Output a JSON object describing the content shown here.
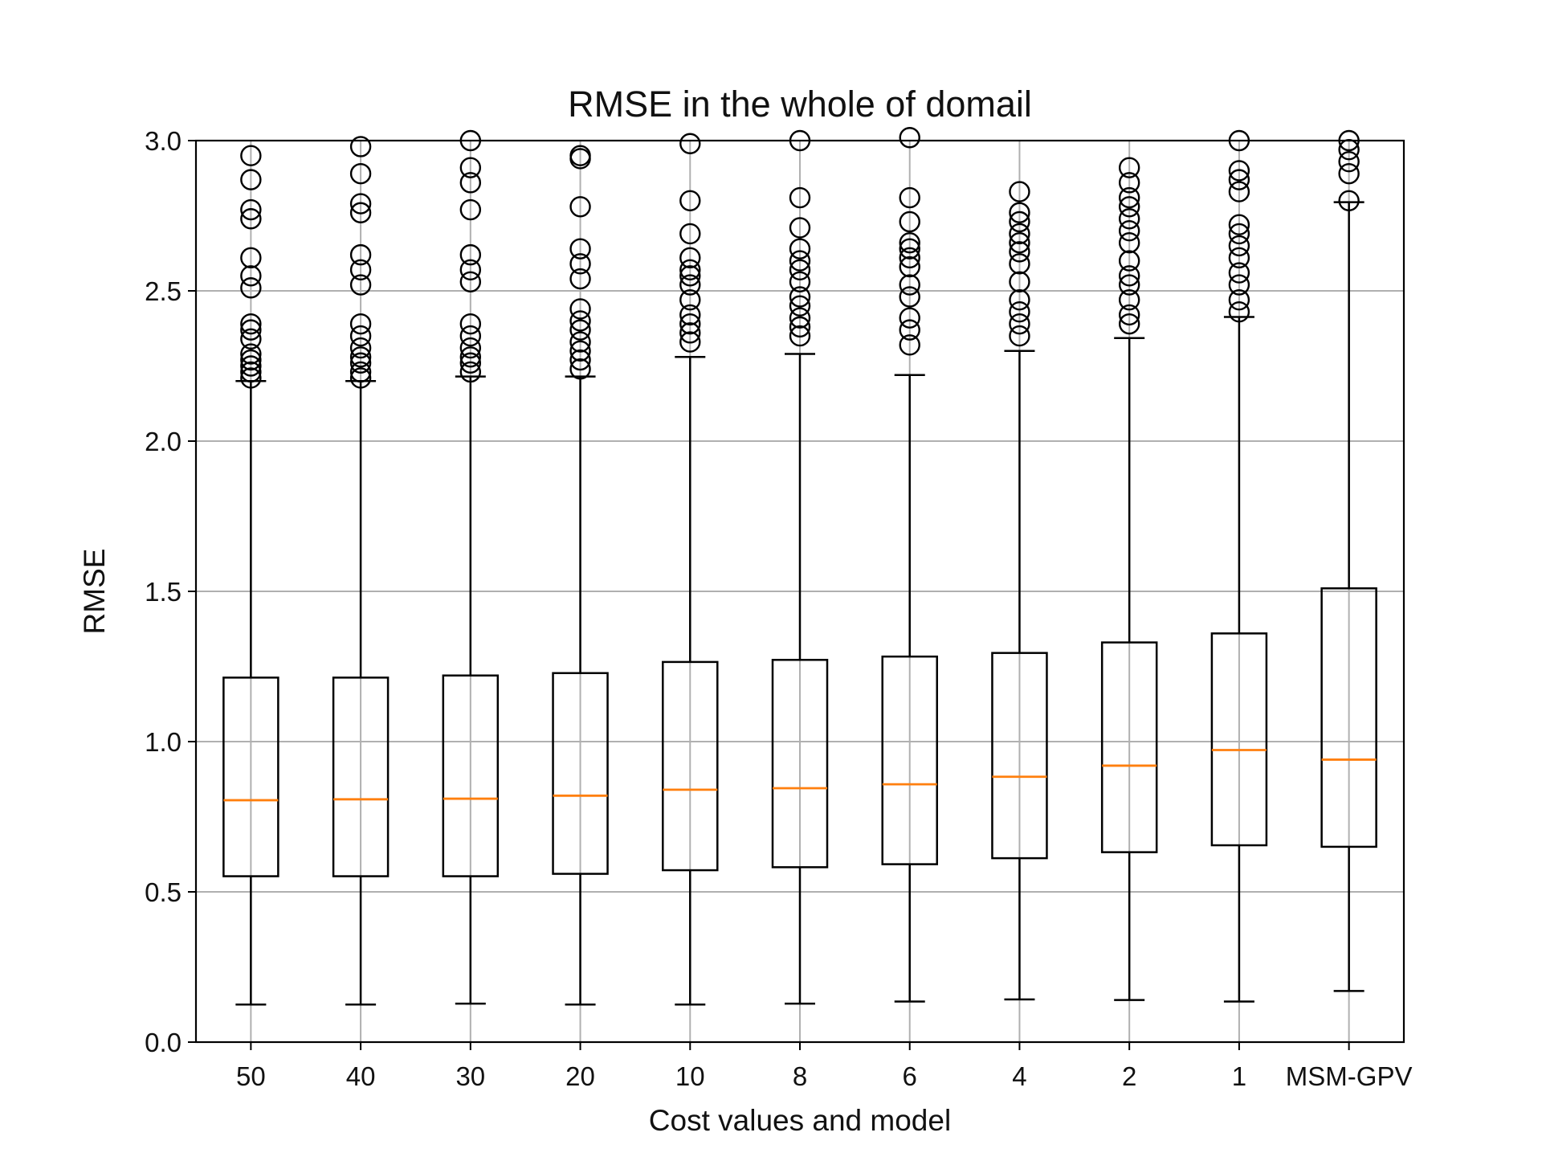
{
  "chart_data": {
    "type": "box",
    "title": "RMSE in the whole of domail",
    "xlabel": "Cost values and model",
    "ylabel": "RMSE",
    "ylim": [
      0.0,
      3.0
    ],
    "yticks": [
      "0.0",
      "0.5",
      "1.0",
      "1.5",
      "2.0",
      "2.5",
      "3.0"
    ],
    "grid": true,
    "categories": [
      "50",
      "40",
      "30",
      "20",
      "10",
      "8",
      "6",
      "4",
      "2",
      "1",
      "MSM-GPV"
    ],
    "boxes": [
      {
        "whisker_low": 0.125,
        "q1": 0.552,
        "median": 0.805,
        "q3": 1.213,
        "whisker_high": 2.2,
        "fliers": [
          2.21,
          2.23,
          2.25,
          2.27,
          2.29,
          2.34,
          2.37,
          2.39,
          2.51,
          2.55,
          2.61,
          2.74,
          2.77,
          2.87,
          2.95
        ]
      },
      {
        "whisker_low": 0.125,
        "q1": 0.552,
        "median": 0.808,
        "q3": 1.213,
        "whisker_high": 2.2,
        "fliers": [
          2.21,
          2.23,
          2.26,
          2.28,
          2.31,
          2.35,
          2.39,
          2.52,
          2.57,
          2.62,
          2.76,
          2.79,
          2.89,
          2.98
        ]
      },
      {
        "whisker_low": 0.128,
        "q1": 0.552,
        "median": 0.81,
        "q3": 1.22,
        "whisker_high": 2.215,
        "fliers": [
          2.23,
          2.26,
          2.28,
          2.31,
          2.35,
          2.39,
          2.53,
          2.57,
          2.62,
          2.77,
          2.86,
          2.91,
          3.0
        ]
      },
      {
        "whisker_low": 0.125,
        "q1": 0.56,
        "median": 0.82,
        "q3": 1.228,
        "whisker_high": 2.215,
        "fliers": [
          2.24,
          2.27,
          2.3,
          2.33,
          2.37,
          2.4,
          2.44,
          2.54,
          2.59,
          2.64,
          2.78,
          2.94,
          2.95
        ]
      },
      {
        "whisker_low": 0.125,
        "q1": 0.572,
        "median": 0.84,
        "q3": 1.265,
        "whisker_high": 2.28,
        "fliers": [
          2.33,
          2.36,
          2.39,
          2.42,
          2.47,
          2.52,
          2.55,
          2.57,
          2.61,
          2.69,
          2.8,
          2.99
        ]
      },
      {
        "whisker_low": 0.128,
        "q1": 0.582,
        "median": 0.845,
        "q3": 1.272,
        "whisker_high": 2.29,
        "fliers": [
          2.35,
          2.38,
          2.41,
          2.45,
          2.48,
          2.53,
          2.57,
          2.6,
          2.64,
          2.71,
          2.81,
          3.0
        ]
      },
      {
        "whisker_low": 0.135,
        "q1": 0.592,
        "median": 0.858,
        "q3": 1.283,
        "whisker_high": 2.22,
        "fliers": [
          2.32,
          2.37,
          2.41,
          2.48,
          2.52,
          2.58,
          2.61,
          2.64,
          2.66,
          2.73,
          2.81,
          3.01
        ]
      },
      {
        "whisker_low": 0.142,
        "q1": 0.612,
        "median": 0.883,
        "q3": 1.295,
        "whisker_high": 2.3,
        "fliers": [
          2.35,
          2.39,
          2.43,
          2.47,
          2.53,
          2.59,
          2.63,
          2.66,
          2.69,
          2.73,
          2.76,
          2.83
        ]
      },
      {
        "whisker_low": 0.14,
        "q1": 0.632,
        "median": 0.92,
        "q3": 1.33,
        "whisker_high": 2.343,
        "fliers": [
          2.39,
          2.42,
          2.47,
          2.52,
          2.55,
          2.6,
          2.66,
          2.7,
          2.74,
          2.78,
          2.81,
          2.86,
          2.91
        ]
      },
      {
        "whisker_low": 0.135,
        "q1": 0.655,
        "median": 0.972,
        "q3": 1.36,
        "whisker_high": 2.413,
        "fliers": [
          2.43,
          2.47,
          2.52,
          2.56,
          2.61,
          2.65,
          2.69,
          2.72,
          2.83,
          2.87,
          2.9,
          3.0
        ]
      },
      {
        "whisker_low": 0.17,
        "q1": 0.65,
        "median": 0.94,
        "q3": 1.51,
        "whisker_high": 2.795,
        "fliers": [
          2.8,
          2.89,
          2.93,
          2.97,
          3.0
        ]
      }
    ],
    "colors": {
      "box": "#000000",
      "median": "#ff7f0e",
      "grid": "#b0b0b0"
    }
  }
}
